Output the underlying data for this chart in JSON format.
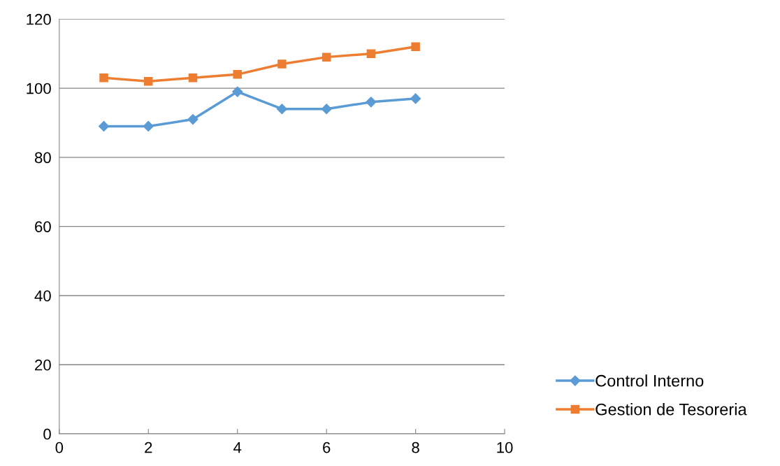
{
  "chart_data": {
    "type": "line",
    "x": [
      1,
      2,
      3,
      4,
      5,
      6,
      7,
      8
    ],
    "series": [
      {
        "name": "Control Interno",
        "color": "#5b9bd5",
        "marker": "diamond",
        "values": [
          89,
          89,
          91,
          99,
          94,
          94,
          96,
          97
        ]
      },
      {
        "name": "Gestion de Tesoreria",
        "color": "#ed7d31",
        "marker": "square",
        "values": [
          103,
          102,
          103,
          104,
          107,
          109,
          110,
          112
        ]
      }
    ],
    "xlim": [
      0,
      10
    ],
    "xticks": [
      0,
      2,
      4,
      6,
      8,
      10
    ],
    "ylim": [
      0,
      120
    ],
    "yticks": [
      0,
      20,
      40,
      60,
      80,
      100,
      120
    ],
    "grid": "y",
    "legend": "right",
    "line_style": "solid"
  }
}
